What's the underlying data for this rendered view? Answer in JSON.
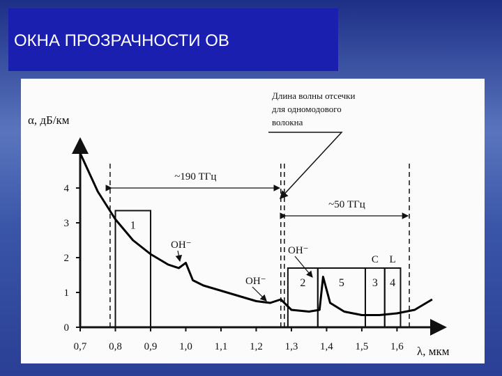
{
  "chart_data": {
    "type": "line",
    "title": "ОКНА ПРОЗРАЧНОСТИ ОВ",
    "y_label": "α, дБ/км",
    "x_label": "λ, мкм",
    "x": [
      0.7,
      0.75,
      0.8,
      0.85,
      0.9,
      0.95,
      0.98,
      1.0,
      1.02,
      1.05,
      1.1,
      1.15,
      1.2,
      1.24,
      1.27,
      1.3,
      1.35,
      1.38,
      1.39,
      1.41,
      1.45,
      1.5,
      1.55,
      1.6,
      1.65,
      1.7
    ],
    "values": [
      5.0,
      3.9,
      3.1,
      2.5,
      2.1,
      1.8,
      1.7,
      1.85,
      1.35,
      1.2,
      1.05,
      0.9,
      0.75,
      0.7,
      0.8,
      0.5,
      0.45,
      0.5,
      1.45,
      0.7,
      0.45,
      0.35,
      0.35,
      0.4,
      0.5,
      0.8
    ],
    "color": "#000000",
    "xlim": [
      0.7,
      1.72
    ],
    "ylim": [
      0,
      5.2
    ],
    "xticks": [
      {
        "value": 0.7,
        "label": "0,7"
      },
      {
        "value": 0.8,
        "label": "0,8"
      },
      {
        "value": 0.9,
        "label": "0,9"
      },
      {
        "value": 1.0,
        "label": "1,0"
      },
      {
        "value": 1.1,
        "label": "1,1"
      },
      {
        "value": 1.2,
        "label": "1,2"
      },
      {
        "value": 1.3,
        "label": "1,3"
      },
      {
        "value": 1.4,
        "label": "1,4"
      },
      {
        "value": 1.5,
        "label": "1,5"
      },
      {
        "value": 1.6,
        "label": "1,6"
      }
    ],
    "yticks": [
      0,
      1,
      2,
      3,
      4
    ],
    "windows": [
      {
        "label": "1",
        "x0": 0.8,
        "x1": 0.9,
        "top": 3.35
      },
      {
        "label": "2",
        "x0": 1.29,
        "x1": 1.375,
        "top": 1.7
      },
      {
        "label": "5",
        "x0": 1.375,
        "x1": 1.51,
        "top": 1.7
      },
      {
        "label": "3",
        "x0": 1.51,
        "x1": 1.565,
        "top": 1.7,
        "band": "C"
      },
      {
        "label": "4",
        "x0": 1.565,
        "x1": 1.61,
        "top": 1.7,
        "band": "L"
      }
    ],
    "spans": [
      {
        "label": "~190 ТГц",
        "from": 0.785,
        "to": 1.27,
        "level": 4
      },
      {
        "label": "~50 ТГц",
        "from": 1.28,
        "to": 1.635,
        "level": 3.2
      }
    ],
    "annotations": [
      "OH⁻",
      "OH⁻",
      "OH⁻"
    ],
    "cutoff_note": [
      "Длина волны отсечки",
      "для одномодового",
      "волокна"
    ]
  }
}
